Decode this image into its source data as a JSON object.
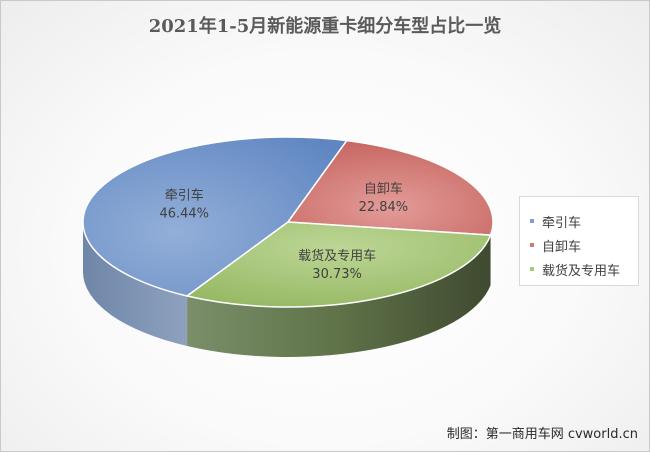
{
  "chart_data": {
    "type": "pie",
    "title": "2021年1-5月新能源重卡细分车型占比一览",
    "slices": [
      {
        "name": "牵引车",
        "value": 46.44,
        "label": "46.44%",
        "color": "#7b9fd1"
      },
      {
        "name": "自卸车",
        "value": 22.84,
        "label": "22.84%",
        "color": "#d17a78"
      },
      {
        "name": "载货及专用车",
        "value": 30.73,
        "label": "30.73%",
        "color": "#a9c97a"
      }
    ],
    "style": "3d",
    "legend": "right"
  },
  "credit": "制图：第一商用车网 cvworld.cn"
}
